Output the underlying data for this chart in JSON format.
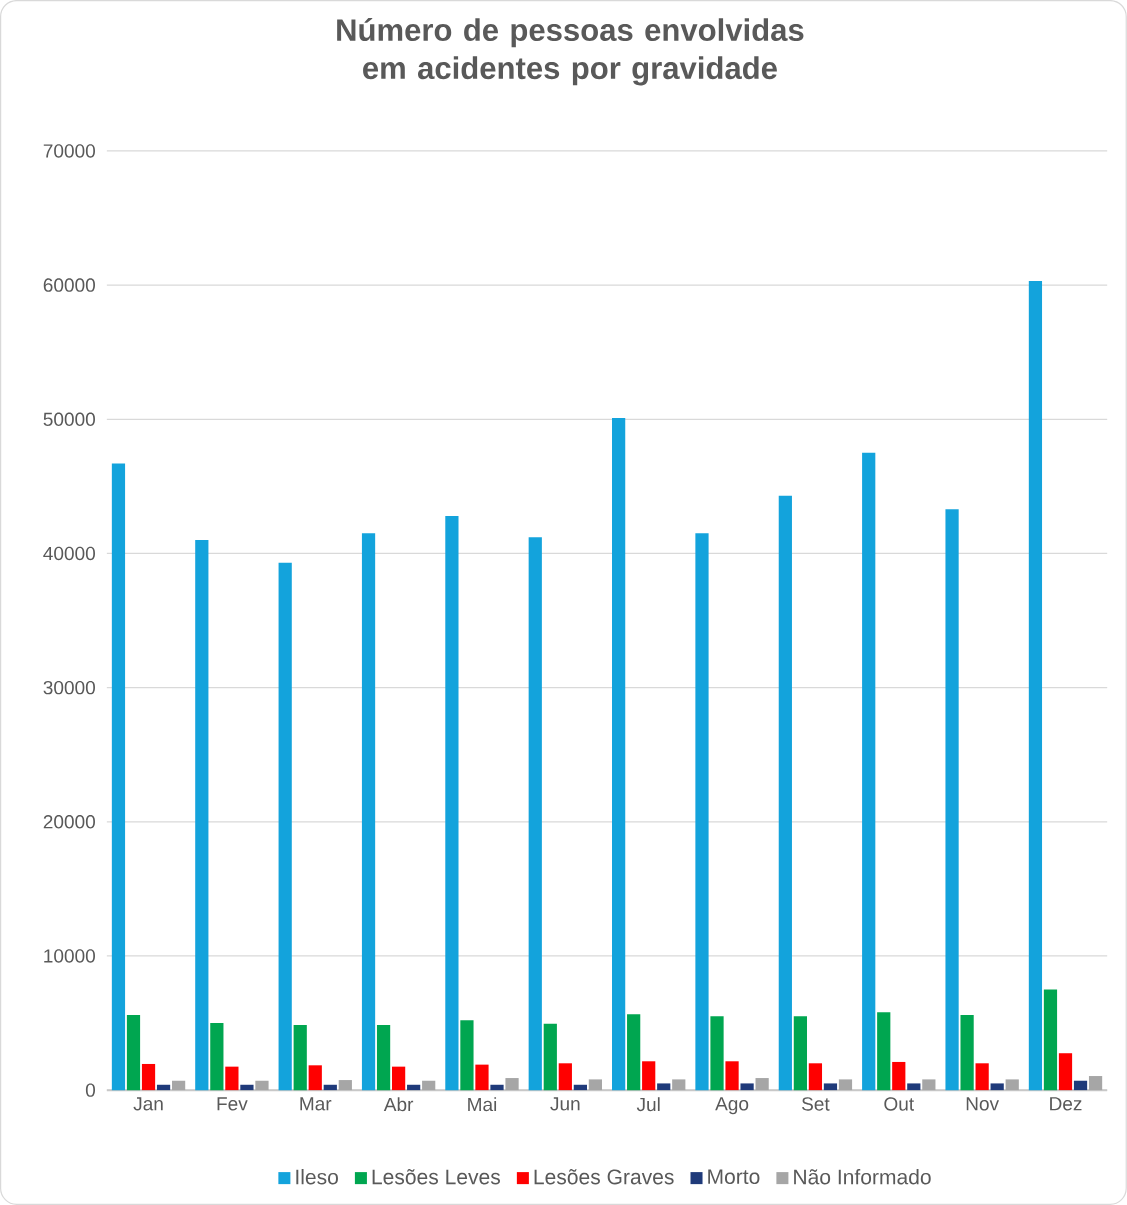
{
  "chart_data": {
    "type": "bar",
    "title": "Número de pessoas envolvidas em acidentes por gravidade",
    "categories": [
      "Jan",
      "Fev",
      "Mar",
      "Abr",
      "Mai",
      "Jun",
      "Jul",
      "Ago",
      "Set",
      "Out",
      "Nov",
      "Dez"
    ],
    "series": [
      {
        "name": "Ileso",
        "color": "#13a3dc",
        "values": [
          46700,
          41000,
          39300,
          41500,
          42800,
          41200,
          50100,
          41500,
          44300,
          47500,
          43300,
          60300
        ]
      },
      {
        "name": "Lesões Leves",
        "color": "#00a650",
        "values": [
          5600,
          5000,
          4850,
          4850,
          5200,
          4950,
          5650,
          5500,
          5500,
          5800,
          5600,
          7500
        ]
      },
      {
        "name": "Lesões Graves",
        "color": "#ff0000",
        "values": [
          1950,
          1750,
          1850,
          1750,
          1900,
          2000,
          2150,
          2150,
          2000,
          2100,
          2000,
          2750
        ]
      },
      {
        "name": "Morto",
        "color": "#1f3a7a",
        "values": [
          400,
          400,
          400,
          400,
          400,
          400,
          500,
          500,
          500,
          500,
          500,
          700
        ]
      },
      {
        "name": "Não Informado",
        "color": "#a6a6a6",
        "values": [
          700,
          700,
          750,
          700,
          900,
          800,
          800,
          900,
          800,
          800,
          800,
          1050
        ]
      }
    ],
    "ylim": [
      0,
      70000
    ],
    "yticks": [
      0,
      10000,
      20000,
      30000,
      40000,
      50000,
      60000,
      70000
    ],
    "grid": "y",
    "legend": "bottom"
  }
}
